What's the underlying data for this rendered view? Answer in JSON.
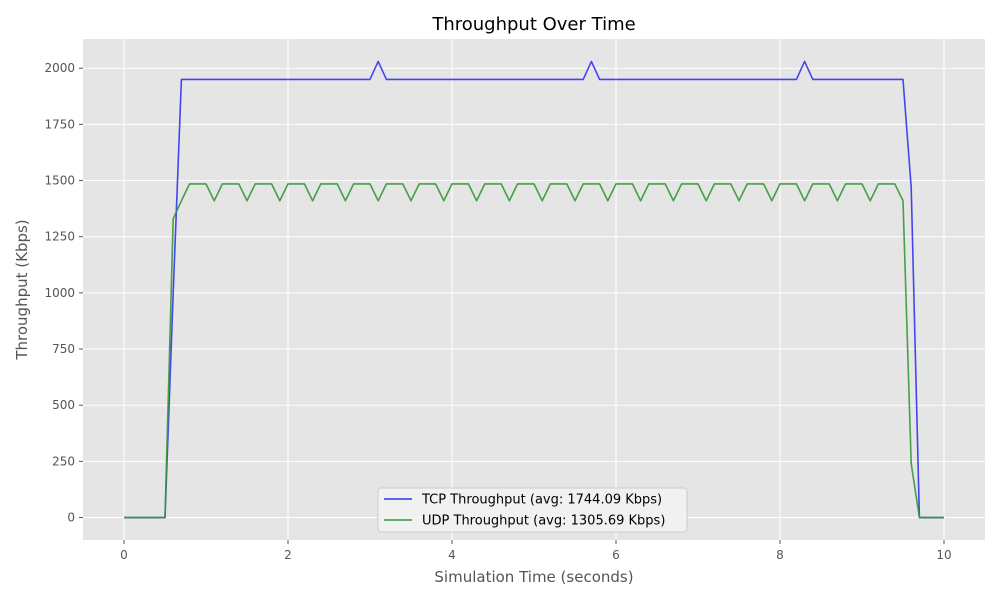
{
  "chart_data": {
    "type": "line",
    "title": "Throughput Over Time",
    "xlabel": "Simulation Time (seconds)",
    "ylabel": "Throughput (Kbps)",
    "xlim": [
      -0.5,
      10.5
    ],
    "ylim": [
      -100,
      2130
    ],
    "xticks": [
      0,
      2,
      4,
      6,
      8,
      10
    ],
    "yticks": [
      0,
      250,
      500,
      750,
      1000,
      1250,
      1500,
      1750,
      2000
    ],
    "grid": true,
    "legend_position": "bottom-center",
    "series": [
      {
        "name": "TCP Throughput (avg: 1744.09 Kbps)",
        "color": "#3333ee",
        "x": [
          0,
          0.1,
          0.2,
          0.3,
          0.4,
          0.5,
          0.6,
          0.7,
          0.8,
          0.9,
          1.0,
          1.5,
          2.0,
          2.5,
          3.0,
          3.1,
          3.2,
          3.5,
          4.0,
          4.5,
          5.0,
          5.5,
          5.6,
          5.7,
          5.8,
          6.0,
          6.5,
          7.0,
          7.5,
          8.0,
          8.2,
          8.3,
          8.4,
          8.5,
          9.0,
          9.5,
          9.6,
          9.7,
          9.8,
          9.9,
          10.0
        ],
        "y": [
          0,
          0,
          0,
          0,
          0,
          0,
          1000,
          1950,
          1950,
          1950,
          1950,
          1950,
          1950,
          1950,
          1950,
          2030,
          1950,
          1950,
          1950,
          1950,
          1950,
          1950,
          1950,
          2030,
          1950,
          1950,
          1950,
          1950,
          1950,
          1950,
          1950,
          2030,
          1950,
          1950,
          1950,
          1950,
          1470,
          0,
          0,
          0,
          0
        ]
      },
      {
        "name": "UDP Throughput (avg: 1305.69 Kbps)",
        "color": "#339933",
        "x": [
          0,
          0.1,
          0.2,
          0.3,
          0.4,
          0.5,
          0.6,
          0.7,
          0.8,
          0.9,
          1.0,
          1.1,
          1.2,
          1.3,
          1.4,
          1.5,
          1.6,
          1.7,
          1.8,
          1.9,
          2.0,
          2.1,
          2.2,
          2.3,
          2.4,
          2.5,
          2.6,
          2.7,
          2.8,
          2.9,
          3.0,
          3.1,
          3.2,
          3.3,
          3.4,
          3.5,
          3.6,
          3.7,
          3.8,
          3.9,
          4.0,
          4.1,
          4.2,
          4.3,
          4.4,
          4.5,
          4.6,
          4.7,
          4.8,
          4.9,
          5.0,
          5.1,
          5.2,
          5.3,
          5.4,
          5.5,
          5.6,
          5.7,
          5.8,
          5.9,
          6.0,
          6.1,
          6.2,
          6.3,
          6.4,
          6.5,
          6.6,
          6.7,
          6.8,
          6.9,
          7.0,
          7.1,
          7.2,
          7.3,
          7.4,
          7.5,
          7.6,
          7.7,
          7.8,
          7.9,
          8.0,
          8.1,
          8.2,
          8.3,
          8.4,
          8.5,
          8.6,
          8.7,
          8.8,
          8.9,
          9.0,
          9.1,
          9.2,
          9.3,
          9.4,
          9.5,
          9.6,
          9.7,
          9.8,
          9.9,
          10.0
        ],
        "y": [
          0,
          0,
          0,
          0,
          0,
          0,
          1330,
          1410,
          1485,
          1485,
          1485,
          1410,
          1485,
          1485,
          1485,
          1410,
          1485,
          1485,
          1485,
          1410,
          1485,
          1485,
          1485,
          1410,
          1485,
          1485,
          1485,
          1410,
          1485,
          1485,
          1485,
          1410,
          1485,
          1485,
          1485,
          1410,
          1485,
          1485,
          1485,
          1410,
          1485,
          1485,
          1485,
          1410,
          1485,
          1485,
          1485,
          1410,
          1485,
          1485,
          1485,
          1410,
          1485,
          1485,
          1485,
          1410,
          1485,
          1485,
          1485,
          1410,
          1485,
          1485,
          1485,
          1410,
          1485,
          1485,
          1485,
          1410,
          1485,
          1485,
          1485,
          1410,
          1485,
          1485,
          1485,
          1410,
          1485,
          1485,
          1485,
          1410,
          1485,
          1485,
          1485,
          1410,
          1485,
          1485,
          1485,
          1410,
          1485,
          1485,
          1485,
          1410,
          1485,
          1485,
          1485,
          1410,
          240,
          0,
          0,
          0,
          0
        ]
      }
    ]
  }
}
